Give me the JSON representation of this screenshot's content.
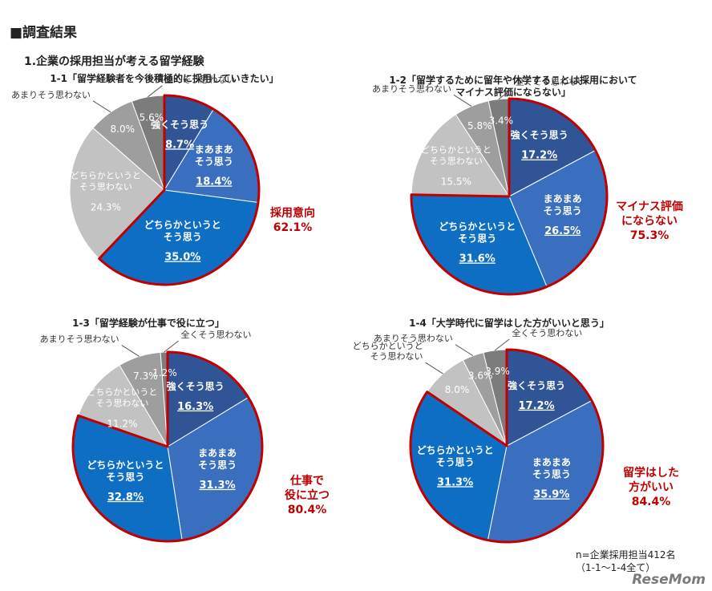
{
  "page": {
    "section_title": "■調査結果",
    "subsection_title": "1.企業の採用担当が考える留学経験",
    "footnote_lines": [
      "n=企業採用担当412名",
      "（1-1～1-4全て）"
    ],
    "watermark": "ReseMom"
  },
  "chart_data": [
    {
      "type": "pie",
      "title_lines": [
        "1-1「留学経験者を今後積極的に採用していきたい」"
      ],
      "highlight": {
        "lines": [
          "採用意向",
          "62.1%"
        ],
        "slices": [
          0,
          1,
          2
        ]
      },
      "slices": [
        {
          "label": "強くそう思う",
          "value": 8.7,
          "color": "#2f5597"
        },
        {
          "label": "まあまあそう思う",
          "value": 18.4,
          "color": "#3a6fbf"
        },
        {
          "label": "どちらかというとそう思う",
          "value": 35.0,
          "color": "#0e6ec4"
        },
        {
          "label": "どちらかというとそう思わない",
          "value": 24.3,
          "color": "#c2c2c2"
        },
        {
          "label": "あまりそう思わない",
          "value": 8.0,
          "color": "#9e9e9e"
        },
        {
          "label": "全くそう思わない",
          "value": 5.6,
          "color": "#7c7c7c"
        }
      ]
    },
    {
      "type": "pie",
      "title_lines": [
        "1-2「留学するために留年や休学することは採用において",
        "マイナス評価にならない」"
      ],
      "highlight": {
        "lines": [
          "マイナス評価",
          "にならない",
          "75.3%"
        ],
        "slices": [
          0,
          1,
          2
        ]
      },
      "slices": [
        {
          "label": "強くそう思う",
          "value": 17.2,
          "color": "#2f5597"
        },
        {
          "label": "まあまあそう思う",
          "value": 26.5,
          "color": "#3a6fbf"
        },
        {
          "label": "どちらかというとそう思う",
          "value": 31.6,
          "color": "#0e6ec4"
        },
        {
          "label": "どちらかというとそう思わない",
          "value": 15.5,
          "color": "#c2c2c2"
        },
        {
          "label": "あまりそう思わない",
          "value": 5.8,
          "color": "#9e9e9e"
        },
        {
          "label": "全くそう思わない",
          "value": 3.4,
          "color": "#7c7c7c"
        }
      ]
    },
    {
      "type": "pie",
      "title_lines": [
        "1-3「留学経験が仕事で役に立つ」"
      ],
      "highlight": {
        "lines": [
          "仕事で",
          "役に立つ",
          "80.4%"
        ],
        "slices": [
          0,
          1,
          2
        ]
      },
      "slices": [
        {
          "label": "強くそう思う",
          "value": 16.3,
          "color": "#2f5597"
        },
        {
          "label": "まあまあそう思う",
          "value": 31.3,
          "color": "#3a6fbf"
        },
        {
          "label": "どちらかというとそう思う",
          "value": 32.8,
          "color": "#0e6ec4"
        },
        {
          "label": "どちらかというとそう思わない",
          "value": 11.2,
          "color": "#c2c2c2"
        },
        {
          "label": "あまりそう思わない",
          "value": 7.3,
          "color": "#9e9e9e"
        },
        {
          "label": "全くそう思わない",
          "value": 1.2,
          "color": "#7c7c7c"
        }
      ]
    },
    {
      "type": "pie",
      "title_lines": [
        "1-4「大学時代に留学はした方がいいと思う」"
      ],
      "highlight": {
        "lines": [
          "留学はした",
          "方がいい",
          "84.4%"
        ],
        "slices": [
          0,
          1,
          2
        ]
      },
      "slices": [
        {
          "label": "強くそう思う",
          "value": 17.2,
          "color": "#2f5597"
        },
        {
          "label": "まあまあそう思う",
          "value": 35.9,
          "color": "#3a6fbf"
        },
        {
          "label": "どちらかというとそう思う",
          "value": 31.3,
          "color": "#0e6ec4"
        },
        {
          "label": "どちらかというとそう思わない",
          "value": 8.0,
          "color": "#c2c2c2"
        },
        {
          "label": "あまりそう思わない",
          "value": 3.6,
          "color": "#9e9e9e"
        },
        {
          "label": "全くそう思わない",
          "value": 3.9,
          "color": "#7c7c7c"
        }
      ]
    }
  ]
}
